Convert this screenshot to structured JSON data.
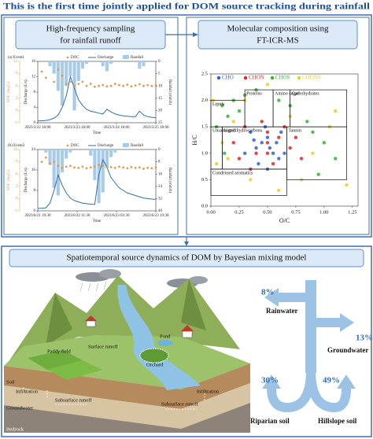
{
  "header": {
    "title": "This is the first time jointly applied for DOM source tracking during rainfall"
  },
  "panels": [
    {
      "title_lines": [
        "High-frequency sampling",
        "for rainfall runoff"
      ]
    },
    {
      "title_lines": [
        "Molecular composition using",
        "FT-ICR-MS"
      ]
    },
    {
      "title_lines": [
        "Spatiotemporal source dynamics of DOM by Bayesian mixing model"
      ]
    }
  ],
  "runoff_charts": [
    {
      "label": "(a) Event1",
      "legend": [
        "DOC",
        "Discharge",
        "Rainfall"
      ],
      "doc_label": "DOC (mg/L)",
      "discharge_label": "Discharge (L/s)",
      "rain_label": "Rainfall (mm/h)",
      "x_label": "Time",
      "x_labels": [
        "2023/3/22 18:00",
        "2023/3/23 18:00",
        "2023/3/24 18:00",
        "2023/3/25 18:00"
      ],
      "doc_ylim": [
        -3,
        12
      ],
      "doc_yticks": [
        -3,
        0,
        3,
        6,
        9,
        12
      ],
      "discharge_ylim": [
        0,
        16
      ],
      "discharge_yticks": [
        0,
        4,
        8,
        12,
        16
      ],
      "rain_ylim": [
        0,
        25
      ],
      "rain_yticks": [
        0,
        5,
        10,
        15,
        20,
        25
      ],
      "rain_reversed": true,
      "doc_color": "#e39b50",
      "discharge_color": "#2f6fa8",
      "rain_color": "#a9cbea",
      "discharge": [
        0.5,
        0.5,
        0.6,
        0.8,
        1.2,
        2,
        4,
        7,
        12,
        9,
        6,
        4.5,
        3.5,
        3,
        2.8,
        2.5,
        2.3,
        3.5,
        2.8,
        2.3,
        2,
        1.8,
        1.7,
        1.6,
        1.6,
        3,
        2,
        1.6,
        1.4,
        1.3
      ],
      "doc": [
        null,
        9.5,
        8,
        null,
        7,
        10,
        8.5,
        6.5,
        7,
        6,
        6.5,
        7,
        6,
        6.5,
        5.8,
        6,
        6.2,
        5.9,
        6,
        6.5,
        6.2,
        6,
        6.3,
        5.9,
        6.1,
        6.4,
        6,
        6.2,
        6,
        6.1
      ],
      "rainfall": [
        0,
        0,
        0,
        2,
        5,
        12,
        18,
        10,
        6,
        20,
        8,
        3,
        1,
        0,
        0,
        0,
        2,
        4,
        1,
        0,
        0,
        0,
        0,
        0,
        0,
        3,
        2,
        0,
        0,
        0
      ]
    },
    {
      "label": "(b) Event2",
      "legend": [
        "DOC",
        "Discharge",
        "Rainfall"
      ],
      "doc_label": "DOC (mg/L)",
      "discharge_label": "Discharge (L/s)",
      "rain_label": "Rainfall (mm/h)",
      "x_label": "Time",
      "x_labels": [
        "2023/6/21 19:30",
        "2023/6/22 11:30",
        "2023/6/23 03:30",
        "2023/6/23 19:30"
      ],
      "doc_ylim": [
        -3,
        12
      ],
      "doc_yticks": [
        -3,
        0,
        3,
        6,
        9,
        12
      ],
      "discharge_ylim": [
        0,
        24
      ],
      "discharge_yticks": [
        0,
        8,
        16,
        24
      ],
      "rain_ylim": [
        0,
        40
      ],
      "rain_yticks": [
        0,
        8,
        16,
        24,
        32,
        40
      ],
      "rain_reversed": true,
      "doc_color": "#e39b50",
      "discharge_color": "#2f6fa8",
      "rain_color": "#a9cbea",
      "discharge": [
        1,
        1,
        1.2,
        3,
        8,
        14,
        10,
        7,
        5,
        4,
        3.5,
        3,
        2.8,
        2.6,
        2.5,
        14,
        20,
        17,
        13,
        11,
        9,
        8,
        7,
        6.5,
        6,
        5.5,
        5,
        4.8,
        4.6,
        4.5
      ],
      "doc": [
        null,
        9,
        10,
        8.5,
        9,
        8,
        7.5,
        7.8,
        8,
        7.6,
        7.5,
        7.8,
        7.4,
        7.6,
        7.8,
        8.2,
        8,
        7.6,
        7.7,
        7.5,
        7.8,
        7.6,
        7.4,
        7.7,
        7.5,
        7.6,
        7.3,
        7.5,
        7.4,
        7.6
      ],
      "rainfall": [
        0,
        0,
        2,
        10,
        25,
        30,
        15,
        6,
        2,
        0,
        0,
        0,
        0,
        4,
        20,
        35,
        28,
        12,
        5,
        2,
        0,
        0,
        0,
        0,
        0,
        0,
        0,
        0,
        0,
        0
      ]
    }
  ],
  "van_krevelen": {
    "x_label": "O/C",
    "y_label": "H/C",
    "xlim": [
      0,
      1.3
    ],
    "xticks": [
      {
        "value": 0,
        "label": "0.00"
      },
      {
        "value": 0.25,
        "label": "0.25"
      },
      {
        "value": 0.5,
        "label": "0.50"
      },
      {
        "value": 0.75,
        "label": "0.75"
      },
      {
        "value": 1,
        "label": "1.00"
      },
      {
        "value": 1.25,
        "label": "1.25"
      }
    ],
    "ylim": [
      0,
      2.5
    ],
    "yticks": [
      {
        "value": 0,
        "label": "0.0"
      },
      {
        "value": 0.5,
        "label": "0.5"
      },
      {
        "value": 1,
        "label": "1.0"
      },
      {
        "value": 1.5,
        "label": "1.5"
      },
      {
        "value": 2,
        "label": "2.0"
      },
      {
        "value": 2.5,
        "label": "2.5"
      }
    ],
    "series": [
      {
        "name": "CHO",
        "color": "#2f5fd0",
        "x": [
          0.3,
          0.4,
          0.45,
          0.5,
          0.55,
          0.6,
          0.35,
          0.42,
          0.48,
          0.52,
          0.58,
          0.65,
          0.38,
          0.5,
          0.62
        ],
        "y": [
          1.0,
          1.1,
          1.2,
          1.3,
          1.0,
          0.9,
          1.4,
          0.8,
          1.5,
          1.1,
          1.2,
          1.0,
          1.25,
          0.7,
          1.4
        ]
      },
      {
        "name": "CHON",
        "color": "#e0242a",
        "x": [
          0.2,
          0.3,
          0.4,
          0.5,
          0.6,
          0.7,
          0.8,
          0.45,
          0.55,
          0.35,
          0.65,
          0.5,
          0.25,
          0.75,
          0.5
        ],
        "y": [
          1.2,
          1.5,
          1.0,
          1.2,
          1.3,
          1.1,
          0.9,
          1.6,
          0.8,
          0.7,
          1.5,
          1.0,
          0.9,
          1.3,
          1.4
        ]
      },
      {
        "name": "CHOS",
        "color": "#2fb52f",
        "x": [
          0.1,
          0.2,
          0.15,
          0.3,
          0.05,
          0.9,
          1.0,
          1.1,
          0.25,
          0.4,
          0.7,
          0.85,
          0.12,
          0.95,
          0.6
        ],
        "y": [
          1.9,
          2.0,
          1.7,
          2.1,
          1.5,
          1.4,
          1.2,
          0.9,
          1.8,
          2.2,
          1.9,
          1.6,
          1.0,
          0.6,
          2.0
        ]
      },
      {
        "name": "CHONS",
        "color": "#e8d020",
        "x": [
          0.05,
          0.1,
          0.2,
          0.3,
          0.8,
          0.9,
          1.05,
          1.2,
          0.15,
          0.5,
          0.6,
          0.35,
          0.02,
          1.1,
          0.7
        ],
        "y": [
          0.8,
          1.2,
          1.6,
          2.0,
          0.5,
          1.0,
          1.5,
          0.4,
          0.9,
          2.3,
          0.3,
          0.5,
          2.0,
          1.8,
          1.7
        ]
      }
    ],
    "regions": [
      {
        "label": "Lipids",
        "x": [
          0,
          0.3
        ],
        "y": [
          1.5,
          2.0
        ]
      },
      {
        "label": "Proteins",
        "x": [
          0.3,
          0.55
        ],
        "y": [
          1.5,
          2.2
        ]
      },
      {
        "label": "Amino sugar",
        "x": [
          0.55,
          0.7
        ],
        "y": [
          1.5,
          2.2
        ]
      },
      {
        "label": "Carbohydrates",
        "x": [
          0.7,
          1.2
        ],
        "y": [
          1.5,
          2.2
        ]
      },
      {
        "label": "Unsaturated hydrocarbons",
        "x": [
          0,
          0.1
        ],
        "y": [
          0.7,
          1.5
        ]
      },
      {
        "label": "Lignin",
        "x": [
          0.1,
          0.67
        ],
        "y": [
          0.7,
          1.5
        ]
      },
      {
        "label": "Tannin",
        "x": [
          0.67,
          1.2
        ],
        "y": [
          0.5,
          1.5
        ]
      },
      {
        "label": "Condensed aromatics",
        "x": [
          0,
          0.67
        ],
        "y": [
          0.2,
          0.7
        ]
      }
    ]
  },
  "landscape": {
    "labels": [
      "Paddy field",
      "Surface runoff",
      "Orchard",
      "Pond",
      "Soil",
      "Infiltration",
      "Groundwater",
      "Subsurface runoff",
      "Infiltration",
      "Subsurface runoff",
      "Bedrock"
    ]
  },
  "sources": [
    {
      "percent": "8%",
      "name": "Rainwater"
    },
    {
      "percent": "13%",
      "name": "Groundwater"
    },
    {
      "percent": "30%",
      "name": "Riparian soil"
    },
    {
      "percent": "49%",
      "name": "Hillslope soil"
    }
  ]
}
